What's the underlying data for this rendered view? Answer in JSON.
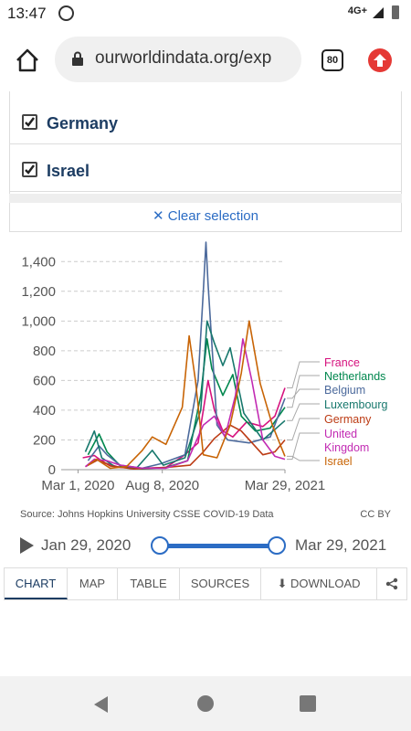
{
  "status": {
    "time": "13:47",
    "network": "4G+"
  },
  "browser": {
    "url": "ourworldindata.org/exp",
    "tab_count": "80"
  },
  "selection": {
    "items": [
      {
        "label": "Germany",
        "checked": true
      },
      {
        "label": "Israel",
        "checked": true
      }
    ],
    "clear_label": "Clear selection"
  },
  "chart_data": {
    "type": "line",
    "y_ticks": [
      "0",
      "200",
      "400",
      "600",
      "800",
      "1,000",
      "1,200",
      "1,400"
    ],
    "x_ticks": [
      "Mar 1, 2020",
      "Aug 8, 2020",
      "Mar 29, 2021"
    ],
    "ylim": [
      0,
      1500
    ],
    "x_range": [
      "2020-01-29",
      "2021-03-29"
    ],
    "grid": true,
    "series": [
      {
        "name": "France",
        "color": "#d6127e",
        "end_value": 550,
        "points": [
          [
            "2020-03-10",
            80
          ],
          [
            "2020-04-01",
            95
          ],
          [
            "2020-04-20",
            45
          ],
          [
            "2020-05-20",
            15
          ],
          [
            "2020-07-01",
            10
          ],
          [
            "2020-08-15",
            15
          ],
          [
            "2020-09-20",
            100
          ],
          [
            "2020-10-15",
            180
          ],
          [
            "2020-11-03",
            600
          ],
          [
            "2020-11-15",
            400
          ],
          [
            "2020-12-01",
            260
          ],
          [
            "2020-12-20",
            220
          ],
          [
            "2021-01-15",
            320
          ],
          [
            "2021-02-15",
            290
          ],
          [
            "2021-03-10",
            360
          ],
          [
            "2021-03-29",
            550
          ]
        ]
      },
      {
        "name": "Netherlands",
        "color": "#00874e",
        "end_value": 420,
        "points": [
          [
            "2020-03-20",
            100
          ],
          [
            "2020-04-10",
            240
          ],
          [
            "2020-04-25",
            120
          ],
          [
            "2020-05-20",
            25
          ],
          [
            "2020-07-01",
            5
          ],
          [
            "2020-08-15",
            15
          ],
          [
            "2020-09-25",
            60
          ],
          [
            "2020-10-20",
            500
          ],
          [
            "2020-11-01",
            880
          ],
          [
            "2020-11-10",
            680
          ],
          [
            "2020-12-01",
            500
          ],
          [
            "2020-12-20",
            640
          ],
          [
            "2021-01-05",
            360
          ],
          [
            "2021-02-01",
            260
          ],
          [
            "2021-03-01",
            280
          ],
          [
            "2021-03-29",
            420
          ]
        ]
      },
      {
        "name": "Belgium",
        "color": "#4c6a9c",
        "end_value": 480,
        "points": [
          [
            "2020-03-20",
            60
          ],
          [
            "2020-04-10",
            160
          ],
          [
            "2020-04-25",
            100
          ],
          [
            "2020-05-20",
            30
          ],
          [
            "2020-07-01",
            10
          ],
          [
            "2020-08-05",
            40
          ],
          [
            "2020-09-20",
            100
          ],
          [
            "2020-10-15",
            600
          ],
          [
            "2020-10-25",
            1200
          ],
          [
            "2020-10-30",
            1530
          ],
          [
            "2020-11-03",
            1250
          ],
          [
            "2020-11-20",
            300
          ],
          [
            "2020-12-10",
            200
          ],
          [
            "2021-01-20",
            180
          ],
          [
            "2021-03-01",
            220
          ],
          [
            "2021-03-29",
            480
          ]
        ]
      },
      {
        "name": "Luxembourg",
        "color": "#18786d",
        "end_value": 330,
        "points": [
          [
            "2020-03-15",
            120
          ],
          [
            "2020-04-01",
            260
          ],
          [
            "2020-04-15",
            80
          ],
          [
            "2020-05-10",
            20
          ],
          [
            "2020-06-20",
            10
          ],
          [
            "2020-07-20",
            130
          ],
          [
            "2020-08-10",
            30
          ],
          [
            "2020-09-20",
            80
          ],
          [
            "2020-10-20",
            400
          ],
          [
            "2020-11-01",
            1000
          ],
          [
            "2020-11-15",
            850
          ],
          [
            "2020-12-01",
            700
          ],
          [
            "2020-12-15",
            820
          ],
          [
            "2021-01-10",
            380
          ],
          [
            "2021-02-15",
            200
          ],
          [
            "2021-03-29",
            330
          ]
        ]
      },
      {
        "name": "Germany",
        "color": "#bc3b14",
        "end_value": 200,
        "points": [
          [
            "2020-03-15",
            20
          ],
          [
            "2020-04-10",
            70
          ],
          [
            "2020-05-01",
            25
          ],
          [
            "2020-06-15",
            5
          ],
          [
            "2020-08-15",
            15
          ],
          [
            "2020-09-30",
            30
          ],
          [
            "2020-10-25",
            120
          ],
          [
            "2020-11-15",
            210
          ],
          [
            "2020-12-15",
            300
          ],
          [
            "2021-01-05",
            260
          ],
          [
            "2021-02-15",
            100
          ],
          [
            "2021-03-10",
            120
          ],
          [
            "2021-03-29",
            200
          ]
        ]
      },
      {
        "name": "United Kingdom",
        "color": "#c22bb3",
        "end_value": 70,
        "points": [
          [
            "2020-03-15",
            20
          ],
          [
            "2020-04-01",
            70
          ],
          [
            "2020-04-25",
            60
          ],
          [
            "2020-05-20",
            30
          ],
          [
            "2020-07-01",
            10
          ],
          [
            "2020-08-15",
            10
          ],
          [
            "2020-09-25",
            60
          ],
          [
            "2020-10-25",
            300
          ],
          [
            "2020-11-15",
            360
          ],
          [
            "2020-12-05",
            220
          ],
          [
            "2020-12-25",
            500
          ],
          [
            "2021-01-08",
            880
          ],
          [
            "2021-01-25",
            600
          ],
          [
            "2021-02-15",
            200
          ],
          [
            "2021-03-10",
            90
          ],
          [
            "2021-03-29",
            70
          ]
        ]
      },
      {
        "name": "Israel",
        "color": "#c86405",
        "end_value": 90,
        "points": [
          [
            "2020-03-20",
            30
          ],
          [
            "2020-04-05",
            70
          ],
          [
            "2020-05-01",
            10
          ],
          [
            "2020-06-01",
            20
          ],
          [
            "2020-07-01",
            130
          ],
          [
            "2020-07-20",
            220
          ],
          [
            "2020-08-15",
            170
          ],
          [
            "2020-09-15",
            420
          ],
          [
            "2020-09-28",
            900
          ],
          [
            "2020-10-10",
            600
          ],
          [
            "2020-10-25",
            100
          ],
          [
            "2020-11-20",
            80
          ],
          [
            "2020-12-15",
            300
          ],
          [
            "2021-01-05",
            650
          ],
          [
            "2021-01-20",
            1000
          ],
          [
            "2021-02-10",
            580
          ],
          [
            "2021-03-05",
            300
          ],
          [
            "2021-03-29",
            90
          ]
        ]
      }
    ]
  },
  "source": "Source: Johns Hopkins University CSSE COVID-19 Data",
  "license": "CC BY",
  "timeline": {
    "start": "Jan 29, 2020",
    "end": "Mar 29, 2021",
    "start_fraction": 0,
    "end_fraction": 1
  },
  "tabs": [
    {
      "label": "CHART",
      "active": true
    },
    {
      "label": "MAP"
    },
    {
      "label": "TABLE"
    },
    {
      "label": "SOURCES"
    },
    {
      "label": "DOWNLOAD"
    }
  ],
  "colors": {
    "accent": "#2b6cc4",
    "title": "#1d3d63"
  }
}
